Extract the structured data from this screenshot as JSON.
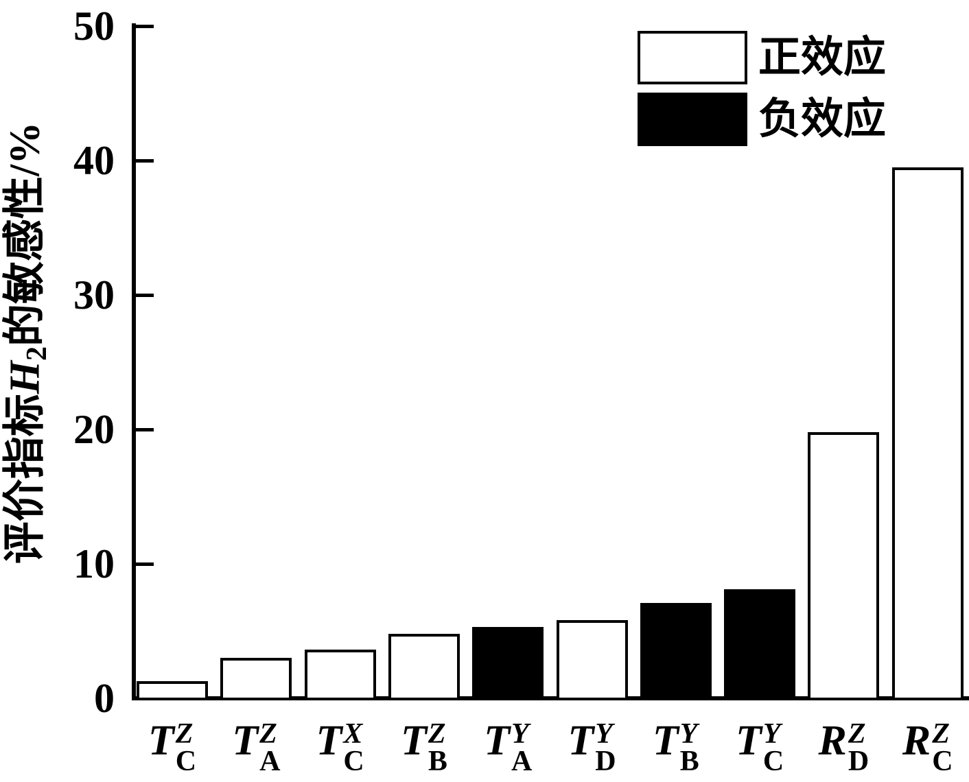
{
  "chart_data": {
    "type": "bar",
    "title": "",
    "ylabel": "评价指标H2的敏感性/%",
    "ylabel_parts": {
      "prefix": "评价指标",
      "variable": "H",
      "subscript": "2",
      "suffix": "的敏感性/%"
    },
    "xlabel": "",
    "ylim": [
      0,
      50
    ],
    "yticks": [
      0,
      10,
      20,
      30,
      40,
      50
    ],
    "grid": false,
    "legend_position": "top-right",
    "categories": [
      {
        "base": "T",
        "sup": "Z",
        "sub": "C"
      },
      {
        "base": "T",
        "sup": "Z",
        "sub": "A"
      },
      {
        "base": "T",
        "sup": "X",
        "sub": "C"
      },
      {
        "base": "T",
        "sup": "Z",
        "sub": "B"
      },
      {
        "base": "T",
        "sup": "Y",
        "sub": "A"
      },
      {
        "base": "T",
        "sup": "Y",
        "sub": "D"
      },
      {
        "base": "T",
        "sup": "Y",
        "sub": "B"
      },
      {
        "base": "T",
        "sup": "Y",
        "sub": "C"
      },
      {
        "base": "R",
        "sup": "Z",
        "sub": "D"
      },
      {
        "base": "R",
        "sup": "Z",
        "sub": "C"
      }
    ],
    "values": [
      1.3,
      3.0,
      3.6,
      4.8,
      5.3,
      5.8,
      7.1,
      8.1,
      19.8,
      39.5
    ],
    "effects": [
      "positive",
      "positive",
      "positive",
      "positive",
      "negative",
      "positive",
      "negative",
      "negative",
      "positive",
      "positive"
    ],
    "bar_colors": {
      "positive": "#ffffff",
      "negative": "#000000"
    },
    "legend": [
      {
        "label": "正效应",
        "fill": "#ffffff"
      },
      {
        "label": "负效应",
        "fill": "#000000"
      }
    ],
    "axis_color": "#000000",
    "background_color": "#ffffff"
  }
}
